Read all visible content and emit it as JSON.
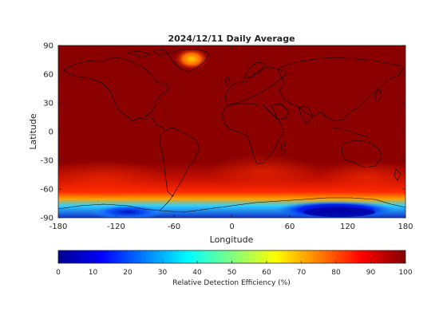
{
  "chart_data": {
    "type": "heatmap",
    "title": "2024/12/11 Daily Average",
    "xlabel": "Longitude",
    "ylabel": "Latitude",
    "xlim": [
      -180,
      180
    ],
    "ylim": [
      -90,
      90
    ],
    "xticks": [
      -180,
      -120,
      -60,
      0,
      60,
      120,
      180
    ],
    "yticks": [
      90,
      60,
      30,
      0,
      -30,
      -60,
      -90
    ],
    "colorbar": {
      "label": "Relative Detection Efficiency (%)",
      "range": [
        0,
        100
      ],
      "ticks": [
        0,
        10,
        20,
        30,
        40,
        50,
        60,
        70,
        80,
        90,
        100
      ],
      "colormap": "jet"
    },
    "overlay": "coastlines",
    "value_bands": [
      {
        "lat_range": [
          -45,
          90
        ],
        "approx_value": 100
      },
      {
        "lat_range": [
          -60,
          -45
        ],
        "approx_value": 95
      },
      {
        "lat_range": [
          -70,
          -60
        ],
        "approx_value": 85
      },
      {
        "lat_range": [
          -78,
          -70
        ],
        "approx_value": 65
      },
      {
        "lat_range": [
          -90,
          -78
        ],
        "approx_value": 20
      }
    ],
    "features": [
      {
        "name": "Greenland",
        "approx_value": 70
      },
      {
        "name": "West Antarctica low",
        "approx_value": 10
      },
      {
        "name": "East Antarctica low",
        "approx_value": 0
      }
    ]
  }
}
